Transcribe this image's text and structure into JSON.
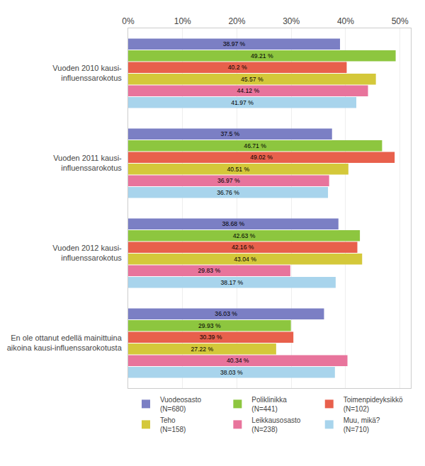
{
  "chart_data": {
    "type": "bar",
    "orientation": "horizontal",
    "categories": [
      "Vuoden 2010 kausi-\ninfluenssarokotus",
      "Vuoden 2011 kausi-\ninfluenssarokotus",
      "Vuoden 2012 kausi-\ninfluenssarokotus",
      "En ole ottanut edellä mainittuina\naikoina kausi-influenssarokotusta"
    ],
    "series": [
      {
        "name": "Vuodeosasto\n(N=680)",
        "color": "#7b7fc4",
        "values": [
          38.97,
          37.5,
          38.68,
          36.03
        ],
        "value_labels": [
          "38.97 %",
          "37.5 %",
          "38.68 %",
          "36.03 %"
        ]
      },
      {
        "name": "Poliklinikka\n(N=441)",
        "color": "#8dc63f",
        "values": [
          49.21,
          46.71,
          42.63,
          29.93
        ],
        "value_labels": [
          "49.21 %",
          "46.71 %",
          "42.63 %",
          "29.93 %"
        ]
      },
      {
        "name": "Toimenpideyksikkö\n(N=102)",
        "color": "#e8604c",
        "values": [
          40.2,
          49.02,
          42.16,
          30.39
        ],
        "value_labels": [
          "40.2 %",
          "49.02 %",
          "42.16 %",
          "30.39 %"
        ]
      },
      {
        "name": "Teho\n(N=158)",
        "color": "#d4c83a",
        "values": [
          45.57,
          40.51,
          43.04,
          27.22
        ],
        "value_labels": [
          "45.57 %",
          "40.51 %",
          "43.04 %",
          "27.22 %"
        ]
      },
      {
        "name": "Leikkausosasto\n(N=238)",
        "color": "#e8749c",
        "values": [
          44.12,
          36.97,
          29.83,
          40.34
        ],
        "value_labels": [
          "44.12 %",
          "36.97 %",
          "29.83 %",
          "40.34 %"
        ]
      },
      {
        "name": "Muu, mikä?\n(N=710)",
        "color": "#a8d4ec",
        "values": [
          41.97,
          36.76,
          38.17,
          38.03
        ],
        "value_labels": [
          "41.97 %",
          "36.76 %",
          "38.17 %",
          "38.03 %"
        ]
      }
    ],
    "xlim": [
      0,
      52
    ],
    "xticks": [
      {
        "value": 0,
        "label": "0%"
      },
      {
        "value": 10,
        "label": "10%"
      },
      {
        "value": 20,
        "label": "20%"
      },
      {
        "value": 30,
        "label": "30%"
      },
      {
        "value": 40,
        "label": "40%"
      },
      {
        "value": 50,
        "label": "50%"
      }
    ],
    "grid": true,
    "legend": "bottom",
    "data_labels": true
  }
}
